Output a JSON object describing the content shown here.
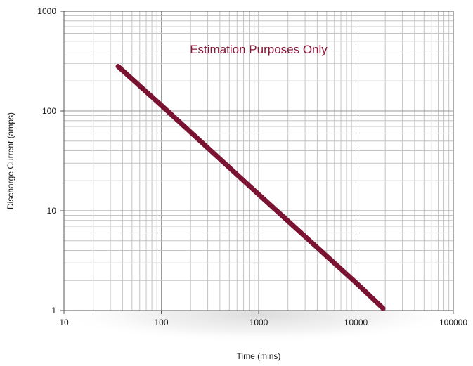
{
  "chart_data": {
    "type": "line",
    "xscale": "log",
    "yscale": "log",
    "xlim": [
      10,
      100000
    ],
    "ylim": [
      1,
      1000
    ],
    "x_tick_labels": [
      "10",
      "100",
      "1000",
      "10000",
      "100000"
    ],
    "y_tick_labels": [
      "1",
      "10",
      "100",
      "1000"
    ],
    "xlabel": "Time (mins)",
    "ylabel": "Discharge Current (amps)",
    "annotation": "Estimation Purposes Only",
    "grid": true,
    "series": [
      {
        "x": [
          36,
          100,
          1000,
          10000,
          19000
        ],
        "y": [
          280,
          114,
          14.6,
          1.9,
          1.05
        ],
        "color": "#7a1332"
      }
    ]
  }
}
